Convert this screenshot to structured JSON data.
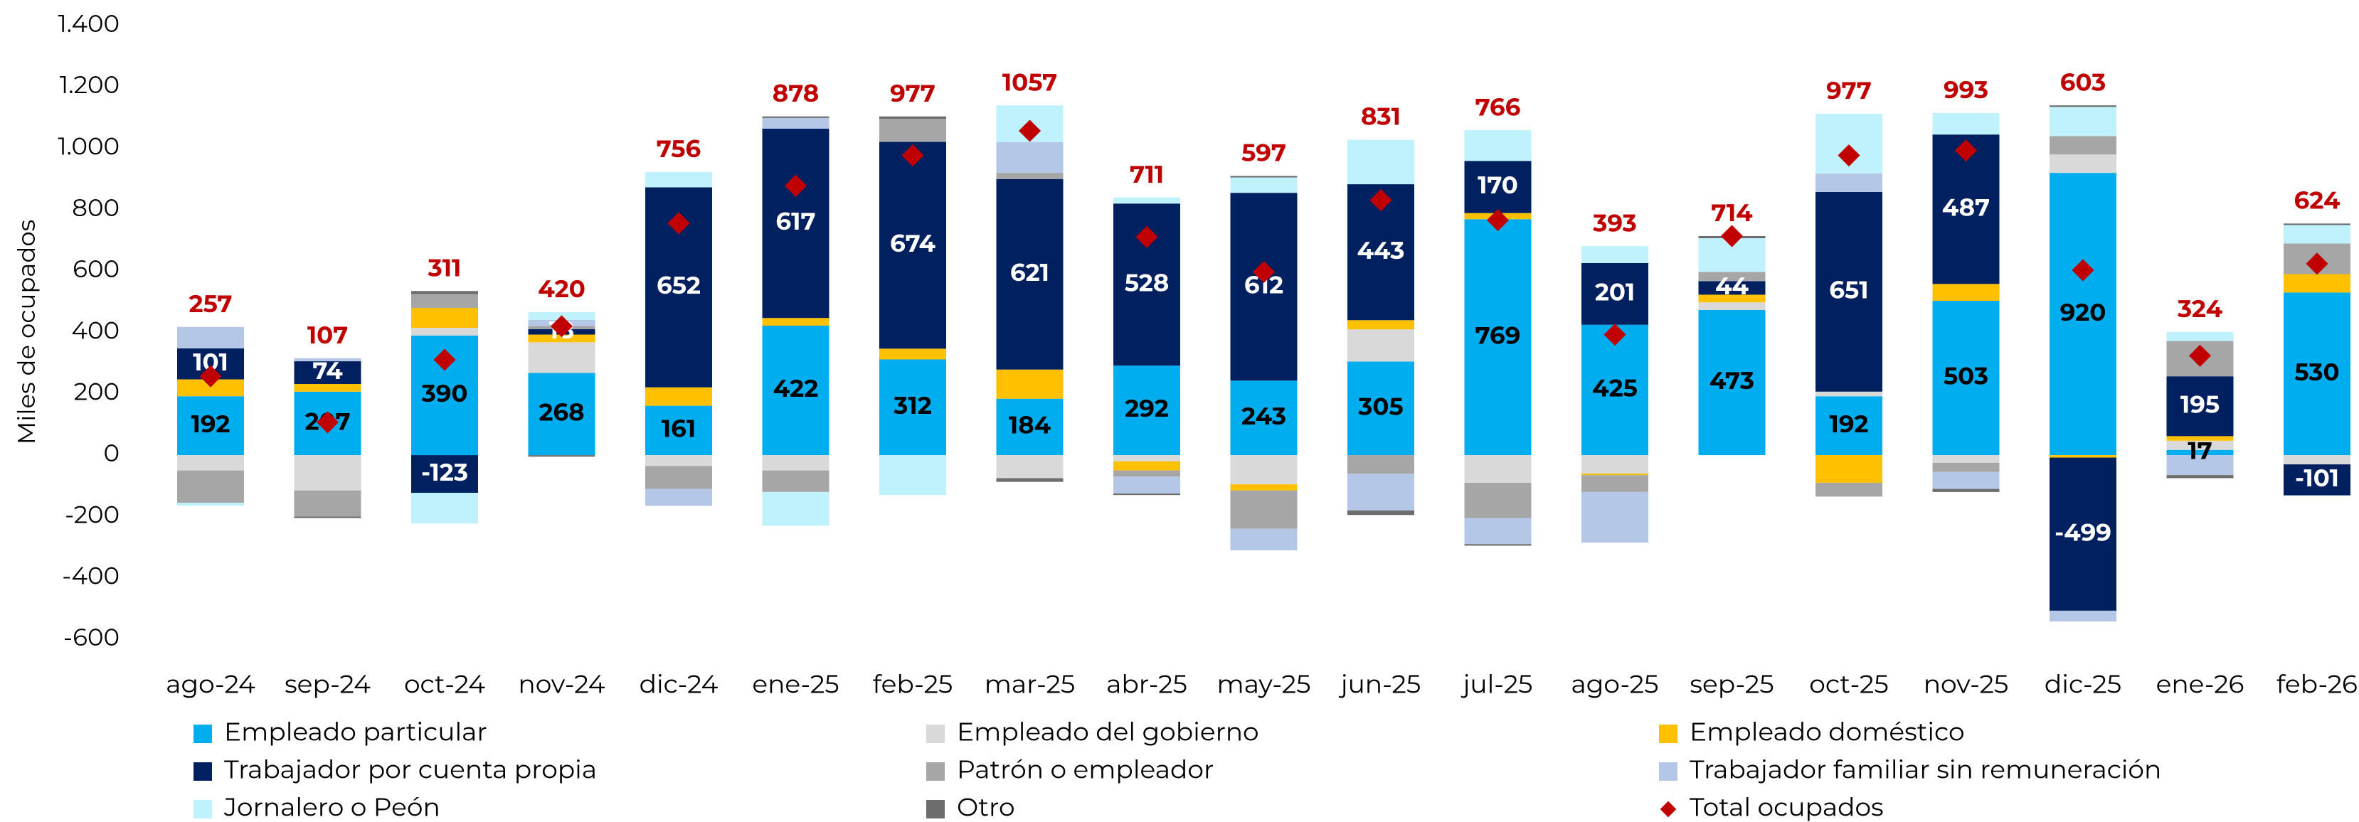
{
  "chart_data": {
    "type": "stacked_bar",
    "y_label": "Miles de ocupados",
    "categories": [
      "ago-24",
      "sep-24",
      "oct-24",
      "nov-24",
      "dic-24",
      "ene-25",
      "feb-25",
      "mar-25",
      "abr-25",
      "may-25",
      "jun-25",
      "jul-25",
      "ago-25",
      "sep-25",
      "oct-25",
      "nov-25",
      "dic-25",
      "ene-26",
      "feb-26"
    ],
    "ylim": [
      -600,
      1400
    ],
    "yticks": [
      {
        "value": 1400,
        "label": "1.400"
      },
      {
        "value": 1200,
        "label": "1.200"
      },
      {
        "value": 1000,
        "label": "1.000"
      },
      800,
      600,
      400,
      200,
      0,
      -200,
      -400,
      -600
    ],
    "series": [
      {
        "name": "Empleado particular",
        "color": "#00aeef",
        "label_color": "#000000",
        "values": [
          192,
          207,
          390,
          268,
          161,
          422,
          312,
          184,
          292,
          243,
          305,
          769,
          425,
          473,
          192,
          503,
          920,
          17,
          530
        ]
      },
      {
        "name": "Empleado del gobierno",
        "color": "#d9d9d9",
        "values": [
          -50,
          -115,
          25,
          100,
          -35,
          -50,
          0,
          -75,
          -20,
          -95,
          105,
          -90,
          -60,
          25,
          15,
          -25,
          60,
          30,
          -30
        ]
      },
      {
        "name": "Empleado doméstico",
        "color": "#ffc000",
        "values": [
          55,
          25,
          65,
          25,
          60,
          25,
          35,
          95,
          -30,
          -20,
          30,
          20,
          -5,
          25,
          -90,
          55,
          -8,
          15,
          60
        ]
      },
      {
        "name": "Trabajador por cuenta propia",
        "color": "#002060",
        "label_color": "#ffffff",
        "values": [
          101,
          74,
          -123,
          18,
          652,
          617,
          674,
          621,
          528,
          612,
          443,
          170,
          201,
          44,
          651,
          487,
          -499,
          195,
          -101
        ]
      },
      {
        "name": "Patrón o empleador",
        "color": "#a6a6a6",
        "values": [
          -105,
          -85,
          45,
          10,
          -75,
          -70,
          75,
          20,
          -20,
          -125,
          -60,
          -115,
          -55,
          30,
          -45,
          -30,
          60,
          115,
          100
        ]
      },
      {
        "name": "Trabajador familiar sin remuneración",
        "color": "#b4c7e7",
        "values": [
          70,
          10,
          0,
          20,
          -55,
          35,
          0,
          100,
          -55,
          -70,
          -120,
          -85,
          -165,
          0,
          60,
          -55,
          -35,
          -65,
          0
        ]
      },
      {
        "name": "Jornalero o Peón",
        "color": "#bff2fc",
        "values": [
          -10,
          0,
          -100,
          25,
          50,
          -110,
          -130,
          120,
          20,
          50,
          145,
          100,
          55,
          110,
          195,
          70,
          95,
          30,
          60
        ]
      },
      {
        "name": "Otro",
        "color": "#6d6d6d",
        "values": [
          0,
          -5,
          10,
          -5,
          0,
          5,
          8,
          -12,
          -5,
          5,
          -15,
          -5,
          0,
          7,
          0,
          -10,
          5,
          -10,
          5
        ]
      }
    ],
    "labeled_series": [
      0,
      3
    ],
    "total": {
      "name": "Total ocupados",
      "color": "#c00000",
      "values": [
        257,
        107,
        311,
        420,
        756,
        878,
        977,
        1057,
        711,
        597,
        831,
        766,
        393,
        714,
        977,
        993,
        603,
        324,
        624
      ]
    }
  }
}
